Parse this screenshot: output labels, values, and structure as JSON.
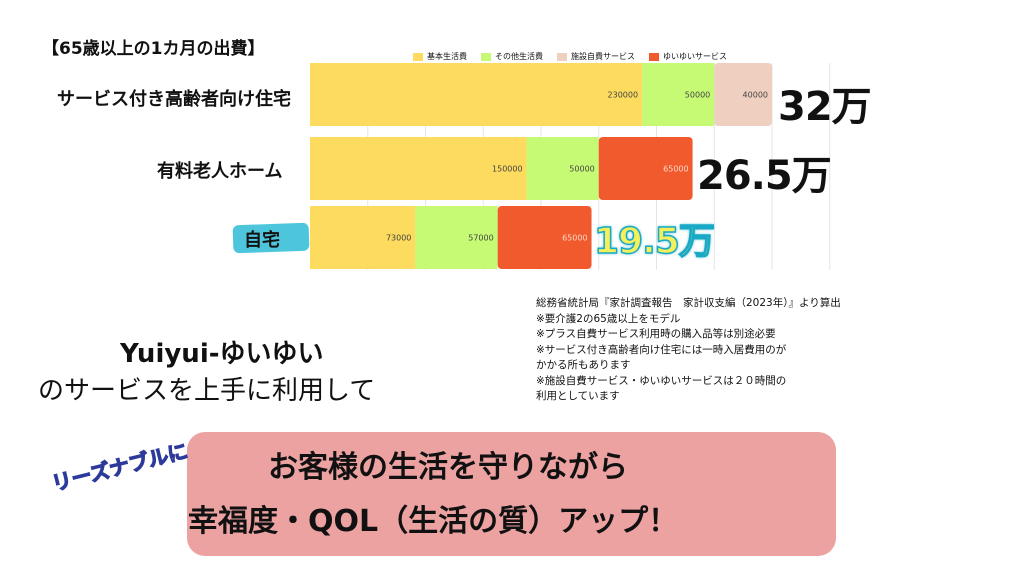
{
  "page_title": "【65歳以上の1カ月の出費】",
  "chart_data": {
    "type": "bar",
    "orientation": "horizontal",
    "stacked": true,
    "categories": [
      "サービス付き高齢者向け住宅",
      "有料老人ホーム",
      "自宅"
    ],
    "series": [
      {
        "name": "基本生活費",
        "color": "#fcdb5e",
        "values": [
          230000,
          150000,
          73000
        ]
      },
      {
        "name": "その他生活費",
        "color": "#c6fa74",
        "values": [
          50000,
          50000,
          57000
        ]
      },
      {
        "name": "施設自費サービス",
        "color": "#efcfbf",
        "values": [
          40000,
          null,
          null
        ]
      },
      {
        "name": "ゆいゆいサービス",
        "color": "#f05a2c",
        "values": [
          null,
          65000,
          65000
        ]
      }
    ],
    "totals": [
      "32万",
      "26.5万",
      "19.5万"
    ],
    "legend_position": "top",
    "grid": true
  },
  "source_note": [
    "総務省統計局『家計調査報告　家計収支編（2023年）』より算出",
    "※要介護2の65歳以上をモデル",
    "※プラス自費サービス利用時の購入品等は別途必要",
    "※サービス付き高齢者向け住宅には一時入居費用のが",
    "かかる所もあります",
    "※施設自費サービス・ゆいゆいサービスは２０時間の",
    "利用としています"
  ],
  "brand_name": "Yuiyui-ゆいゆい",
  "brand_sub": "のサービスを上手に利用して",
  "banner": {
    "line1": "お客様の生活を守りながら",
    "line2": "幸福度・QOL（生活の質）アップ！",
    "tag": "リーズナブルに"
  }
}
